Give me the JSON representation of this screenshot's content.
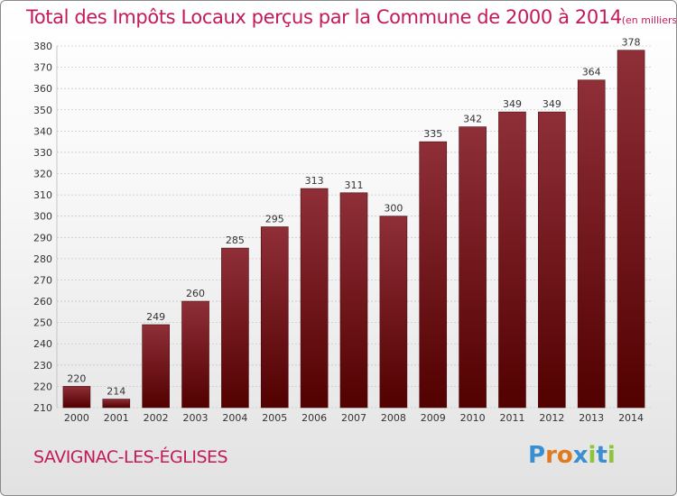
{
  "header": {
    "title": "Total des Impôts Locaux perçus par la Commune de 2000 à 2014",
    "subtitle": "(en milliers d'€)"
  },
  "footer": {
    "commune": "SAVIGNAC-LES-ÉGLISES",
    "logo": {
      "letters": [
        "P",
        "r",
        "o",
        "x",
        "i",
        "t",
        "i"
      ],
      "colors": [
        "#3a8fd0",
        "#e07a1f",
        "#e07a1f",
        "#3a8fd0",
        "#8cc43c",
        "#3a8fd0",
        "#8cc43c"
      ]
    }
  },
  "chart_data": {
    "type": "bar",
    "title": "Total des Impôts Locaux perçus par la Commune de 2000 à 2014",
    "subtitle": "(en milliers d'€)",
    "xlabel": "",
    "ylabel": "",
    "categories": [
      "2000",
      "2001",
      "2002",
      "2003",
      "2004",
      "2005",
      "2006",
      "2007",
      "2008",
      "2009",
      "2010",
      "2011",
      "2012",
      "2013",
      "2014"
    ],
    "values": [
      220,
      214,
      249,
      260,
      285,
      295,
      313,
      311,
      300,
      335,
      342,
      349,
      349,
      364,
      378
    ],
    "ylim": [
      210,
      380
    ],
    "yticks": [
      210,
      220,
      230,
      240,
      250,
      260,
      270,
      280,
      290,
      300,
      310,
      320,
      330,
      340,
      350,
      360,
      370,
      380
    ],
    "grid": true,
    "bar_color": "#7a1a22"
  }
}
